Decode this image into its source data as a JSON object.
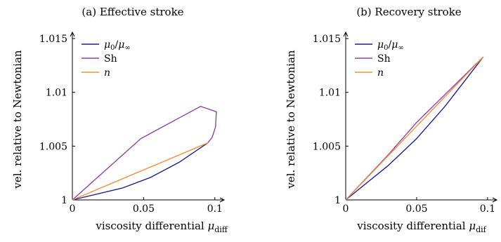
{
  "chart_data": [
    {
      "type": "line",
      "title": "(a) Effective stroke",
      "xlabel": "viscosity differential",
      "xlabel_symbol": "μ",
      "xlabel_sub": "diff",
      "ylabel": "vel. relative to Newtonian",
      "xlim": [
        0,
        0.106
      ],
      "ylim": [
        1,
        1.015
      ],
      "x_ticks": [
        "0",
        "0.05",
        "0.1"
      ],
      "y_ticks": [
        "1",
        "1.005",
        "1.01",
        "1.015"
      ],
      "legend_position": "top-left",
      "series": [
        {
          "name": "μ0/μ∞",
          "color": "#1f1f8f",
          "x": [
            0,
            0.035,
            0.055,
            0.075,
            0.095
          ],
          "y": [
            1,
            1.0011,
            1.0021,
            1.0035,
            1.0053
          ]
        },
        {
          "name": "Sh",
          "color": "#8e44ad",
          "x": [
            0,
            0.048,
            0.09,
            0.101,
            0.1005,
            0.098,
            0.095
          ],
          "y": [
            1,
            1.0057,
            1.0087,
            1.0082,
            1.0068,
            1.0058,
            1.0053
          ]
        },
        {
          "name": "n",
          "color": "#f0903a",
          "x": [
            0,
            0.095
          ],
          "y": [
            1,
            1.0053
          ]
        }
      ]
    },
    {
      "type": "line",
      "title": "(b) Recovery stroke",
      "xlabel": "viscosity differential",
      "xlabel_symbol": "μ",
      "xlabel_sub": "dif",
      "ylabel": "vel. relative to Newtonian",
      "xlim": [
        0,
        0.106
      ],
      "ylim": [
        1,
        1.015
      ],
      "x_ticks": [
        "0",
        "0.05",
        "0.1"
      ],
      "y_ticks": [
        "1",
        "1.005",
        "1.01",
        "1.015"
      ],
      "legend_position": "top-left",
      "series": [
        {
          "name": "μ0/μ∞",
          "color": "#1f1f8f",
          "x": [
            0,
            0.03,
            0.05,
            0.07,
            0.097
          ],
          "y": [
            1,
            1.0032,
            1.0057,
            1.0087,
            1.0133
          ]
        },
        {
          "name": "Sh",
          "color": "#8e44ad",
          "x": [
            0,
            0.03,
            0.05,
            0.07,
            0.097
          ],
          "y": [
            1,
            1.0042,
            1.0072,
            1.0098,
            1.0133
          ]
        },
        {
          "name": "n",
          "color": "#f0903a",
          "x": [
            0,
            0.097
          ],
          "y": [
            1,
            1.0133
          ]
        }
      ]
    }
  ]
}
